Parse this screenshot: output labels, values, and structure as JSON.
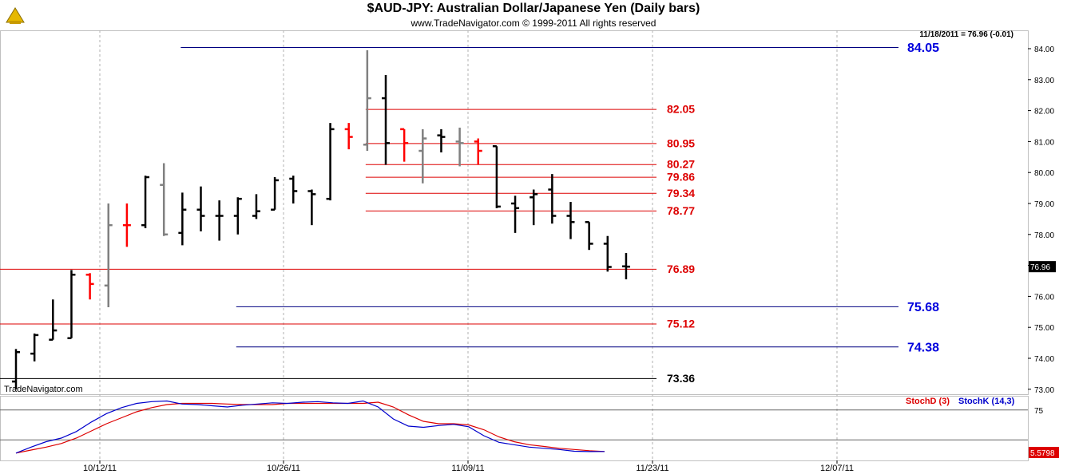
{
  "header": {
    "title": "$AUD-JPY:  Australian Dollar/Japanese Yen  (Daily bars)",
    "subtitle": "www.TradeNavigator.com © 1999-2011 All rights reserved",
    "last_quote": "11/18/2011 = 76.96 (-0.01)",
    "watermark": "TradeNavigator.com"
  },
  "chart_data": {
    "type": "ohlc",
    "price_axis": {
      "ticks": [
        "73.00",
        "74.00",
        "75.00",
        "76.00",
        "77.00",
        "78.00",
        "79.00",
        "80.00",
        "81.00",
        "82.00",
        "83.00",
        "84.00"
      ],
      "ylim": [
        72.7,
        84.6
      ],
      "last_value_label": "76.96"
    },
    "x_axis": {
      "labels": [
        "10/12/11",
        "10/26/11",
        "11/09/11",
        "11/23/11",
        "12/07/11"
      ]
    },
    "colors": {
      "up": "#000000",
      "flat": "#808080",
      "down": "#ff0000",
      "support": "#000080",
      "resistance": "#dd0000"
    },
    "bars": [
      {
        "o": 73.25,
        "h": 74.3,
        "l": 73.0,
        "c": 74.2,
        "color": "black"
      },
      {
        "o": 74.15,
        "h": 74.8,
        "l": 73.9,
        "c": 74.75,
        "color": "black"
      },
      {
        "o": 74.6,
        "h": 75.9,
        "l": 74.6,
        "c": 74.9,
        "color": "black"
      },
      {
        "o": 74.65,
        "h": 76.85,
        "l": 74.65,
        "c": 76.7,
        "color": "black"
      },
      {
        "o": 76.7,
        "h": 76.75,
        "l": 75.9,
        "c": 76.4,
        "color": "red"
      },
      {
        "o": 76.35,
        "h": 79.0,
        "l": 75.65,
        "c": 78.3,
        "color": "gray"
      },
      {
        "o": 78.3,
        "h": 79.0,
        "l": 77.6,
        "c": 78.3,
        "color": "red"
      },
      {
        "o": 78.3,
        "h": 79.9,
        "l": 78.2,
        "c": 79.85,
        "color": "black"
      },
      {
        "o": 79.6,
        "h": 80.3,
        "l": 77.95,
        "c": 78.0,
        "color": "gray"
      },
      {
        "o": 78.05,
        "h": 79.35,
        "l": 77.65,
        "c": 78.8,
        "color": "black"
      },
      {
        "o": 78.8,
        "h": 79.55,
        "l": 78.1,
        "c": 78.6,
        "color": "black"
      },
      {
        "o": 78.6,
        "h": 79.1,
        "l": 77.8,
        "c": 78.6,
        "color": "black"
      },
      {
        "o": 78.6,
        "h": 79.2,
        "l": 78.0,
        "c": 79.15,
        "color": "black"
      },
      {
        "o": 78.6,
        "h": 79.3,
        "l": 78.5,
        "c": 78.75,
        "color": "black"
      },
      {
        "o": 78.8,
        "h": 79.85,
        "l": 78.8,
        "c": 79.75,
        "color": "black"
      },
      {
        "o": 79.8,
        "h": 79.9,
        "l": 79.0,
        "c": 79.4,
        "color": "black"
      },
      {
        "o": 79.4,
        "h": 79.45,
        "l": 78.3,
        "c": 79.3,
        "color": "black"
      },
      {
        "o": 79.15,
        "h": 81.6,
        "l": 79.1,
        "c": 81.4,
        "color": "black"
      },
      {
        "o": 81.4,
        "h": 81.6,
        "l": 80.75,
        "c": 81.15,
        "color": "red"
      },
      {
        "o": 80.9,
        "h": 83.95,
        "l": 80.7,
        "c": 82.4,
        "color": "gray"
      },
      {
        "o": 82.4,
        "h": 83.15,
        "l": 80.25,
        "c": 80.95,
        "color": "black"
      },
      {
        "o": 81.4,
        "h": 81.4,
        "l": 80.35,
        "c": 80.95,
        "color": "red"
      },
      {
        "o": 80.7,
        "h": 81.4,
        "l": 79.65,
        "c": 81.1,
        "color": "gray"
      },
      {
        "o": 81.2,
        "h": 81.4,
        "l": 80.65,
        "c": 81.15,
        "color": "black"
      },
      {
        "o": 81.0,
        "h": 81.45,
        "l": 80.2,
        "c": 80.95,
        "color": "gray"
      },
      {
        "o": 81.0,
        "h": 81.1,
        "l": 80.25,
        "c": 80.7,
        "color": "red"
      },
      {
        "o": 80.85,
        "h": 80.85,
        "l": 78.85,
        "c": 78.9,
        "color": "black"
      },
      {
        "o": 79.0,
        "h": 79.25,
        "l": 78.05,
        "c": 78.85,
        "color": "black"
      },
      {
        "o": 79.2,
        "h": 79.45,
        "l": 78.3,
        "c": 79.3,
        "color": "black"
      },
      {
        "o": 79.45,
        "h": 79.95,
        "l": 78.35,
        "c": 78.6,
        "color": "black"
      },
      {
        "o": 78.6,
        "h": 79.05,
        "l": 77.85,
        "c": 78.4,
        "color": "black"
      },
      {
        "o": 78.4,
        "h": 78.4,
        "l": 77.5,
        "c": 77.7,
        "color": "black"
      },
      {
        "o": 77.7,
        "h": 77.95,
        "l": 76.8,
        "c": 76.95,
        "color": "black"
      },
      {
        "o": 76.97,
        "h": 77.4,
        "l": 76.55,
        "c": 76.96,
        "color": "black"
      }
    ],
    "levels": [
      {
        "value": 84.05,
        "label": "84.05",
        "kind": "support",
        "start_bar": 9
      },
      {
        "value": 82.05,
        "label": "82.05",
        "kind": "resistance",
        "start_bar": 19
      },
      {
        "value": 80.95,
        "label": "80.95",
        "kind": "resistance",
        "start_bar": 19
      },
      {
        "value": 80.27,
        "label": "80.27",
        "kind": "resistance",
        "start_bar": 19
      },
      {
        "value": 79.86,
        "label": "79.86",
        "kind": "resistance",
        "start_bar": 19
      },
      {
        "value": 79.34,
        "label": "79.34",
        "kind": "resistance",
        "start_bar": 19
      },
      {
        "value": 78.77,
        "label": "78.77",
        "kind": "resistance",
        "start_bar": 19
      },
      {
        "value": 76.89,
        "label": "76.89",
        "kind": "resistance",
        "start_bar": -1
      },
      {
        "value": 75.68,
        "label": "75.68",
        "kind": "support",
        "start_bar": 12
      },
      {
        "value": 75.12,
        "label": "75.12",
        "kind": "resistance",
        "start_bar": -1
      },
      {
        "value": 74.38,
        "label": "74.38",
        "kind": "support",
        "start_bar": 12
      },
      {
        "value": 73.36,
        "label": "73.36",
        "kind": "black",
        "start_bar": -1
      }
    ],
    "stochastic": {
      "legend": [
        {
          "name": "StochD (3)",
          "color": "#dd0000"
        },
        {
          "name": "StochK (14,3)",
          "color": "#0000cc"
        }
      ],
      "ref_levels": [
        {
          "value": 75,
          "label": "75"
        },
        {
          "value": 25,
          "label": ""
        }
      ],
      "last_value_label": "5.5798",
      "stoch_d": [
        3,
        8,
        13,
        19,
        28,
        40,
        52,
        62,
        72,
        79,
        84,
        86,
        86,
        86,
        85,
        84,
        84,
        84,
        86,
        86,
        86,
        86,
        86,
        86,
        88,
        80,
        67,
        56,
        52,
        52,
        50,
        42,
        30,
        22,
        17,
        14,
        11,
        9,
        7,
        5.6
      ],
      "stoch_k": [
        3,
        13,
        22,
        28,
        39,
        55,
        69,
        79,
        86,
        89,
        90,
        85,
        84,
        82,
        80,
        83,
        85,
        87,
        86,
        88,
        89,
        87,
        86,
        90,
        80,
        60,
        48,
        46,
        49,
        51,
        47,
        32,
        21,
        17,
        13,
        11,
        9,
        6,
        5.5,
        5.58
      ]
    }
  }
}
